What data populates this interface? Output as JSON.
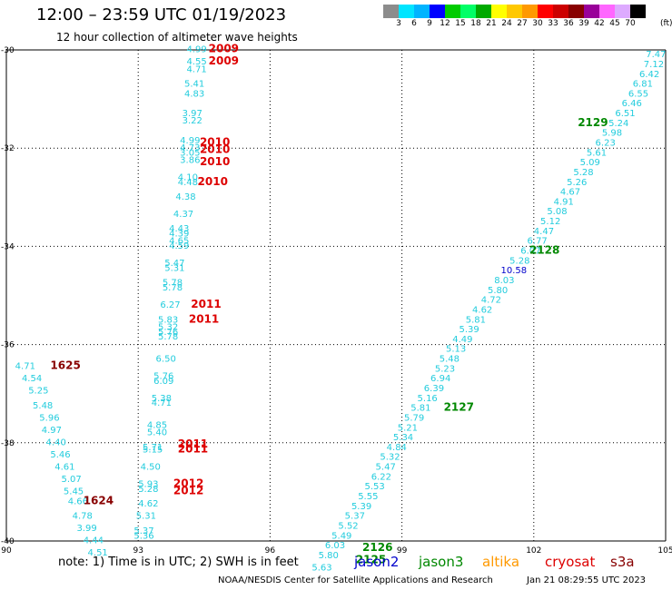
{
  "header": {
    "title": "12:00 – 23:59 UTC 01/19/2023",
    "subtitle": "12 hour collection of altimeter wave heights"
  },
  "scale": {
    "unit": "(ft)",
    "colors": [
      "#8c8c8c",
      "#00e5ff",
      "#00b4ff",
      "#0000ff",
      "#00cc00",
      "#00ff66",
      "#00aa00",
      "#ffff00",
      "#ffc800",
      "#ff9900",
      "#ff0000",
      "#cc0000",
      "#880000",
      "#990099",
      "#ff66ff",
      "#ddaaff",
      "#000000"
    ],
    "labels": [
      "3",
      "6",
      "9",
      "12",
      "15",
      "18",
      "21",
      "24",
      "27",
      "30",
      "33",
      "36",
      "39",
      "42",
      "45",
      "70"
    ]
  },
  "map": {
    "x_ticks": [
      "90",
      "93",
      "96",
      "99",
      "102",
      "105"
    ],
    "y_ticks": [
      "-30",
      "-32",
      "-34",
      "-36",
      "-38",
      "-40"
    ],
    "xlim": [
      90,
      105
    ],
    "ylim": [
      -40,
      -30
    ]
  },
  "wave_labels": [
    {
      "lon": 94.1,
      "lat": -30.05,
      "text": "4.99"
    },
    {
      "lon": 94.1,
      "lat": -30.3,
      "text": "4.55"
    },
    {
      "lon": 94.1,
      "lat": -30.45,
      "text": "4.71"
    },
    {
      "lon": 94.05,
      "lat": -30.75,
      "text": "5.41"
    },
    {
      "lon": 94.05,
      "lat": -30.95,
      "text": "4.83"
    },
    {
      "lon": 94.0,
      "lat": -31.35,
      "text": "3.97"
    },
    {
      "lon": 94.0,
      "lat": -31.5,
      "text": "3.22"
    },
    {
      "lon": 93.95,
      "lat": -31.9,
      "text": "4.99"
    },
    {
      "lon": 93.95,
      "lat": -32.05,
      "text": "4.73"
    },
    {
      "lon": 93.95,
      "lat": -32.15,
      "text": "3.05"
    },
    {
      "lon": 93.95,
      "lat": -32.3,
      "text": "3.86"
    },
    {
      "lon": 93.9,
      "lat": -32.65,
      "text": "4.10"
    },
    {
      "lon": 93.9,
      "lat": -32.75,
      "text": "4.48"
    },
    {
      "lon": 93.85,
      "lat": -33.05,
      "text": "4.38"
    },
    {
      "lon": 93.8,
      "lat": -33.4,
      "text": "4.37"
    },
    {
      "lon": 93.7,
      "lat": -33.7,
      "text": "4.43"
    },
    {
      "lon": 93.7,
      "lat": -33.8,
      "text": "4.39"
    },
    {
      "lon": 93.7,
      "lat": -33.95,
      "text": "4.65"
    },
    {
      "lon": 93.7,
      "lat": -34.05,
      "text": "4.59"
    },
    {
      "lon": 93.6,
      "lat": -34.4,
      "text": "5.47"
    },
    {
      "lon": 93.6,
      "lat": -34.5,
      "text": "5.31"
    },
    {
      "lon": 93.55,
      "lat": -34.8,
      "text": "5.78"
    },
    {
      "lon": 93.55,
      "lat": -34.9,
      "text": "5.78"
    },
    {
      "lon": 93.5,
      "lat": -35.25,
      "text": "6.27"
    },
    {
      "lon": 93.45,
      "lat": -35.55,
      "text": "5.83"
    },
    {
      "lon": 93.45,
      "lat": -35.7,
      "text": "5.32"
    },
    {
      "lon": 93.45,
      "lat": -35.8,
      "text": "5.76"
    },
    {
      "lon": 93.45,
      "lat": -35.9,
      "text": "5.78"
    },
    {
      "lon": 93.4,
      "lat": -36.35,
      "text": "6.50"
    },
    {
      "lon": 93.35,
      "lat": -36.7,
      "text": "5.76"
    },
    {
      "lon": 93.35,
      "lat": -36.8,
      "text": "6.09"
    },
    {
      "lon": 93.3,
      "lat": -37.15,
      "text": "5.38"
    },
    {
      "lon": 93.3,
      "lat": -37.25,
      "text": "4.71"
    },
    {
      "lon": 93.2,
      "lat": -37.7,
      "text": "4.85"
    },
    {
      "lon": 93.2,
      "lat": -37.85,
      "text": "5.40"
    },
    {
      "lon": 93.1,
      "lat": -38.15,
      "text": "5.71"
    },
    {
      "lon": 93.1,
      "lat": -38.2,
      "text": "5.15"
    },
    {
      "lon": 93.05,
      "lat": -38.55,
      "text": "4.50"
    },
    {
      "lon": 93.0,
      "lat": -38.9,
      "text": "5.93"
    },
    {
      "lon": 93.0,
      "lat": -39.0,
      "text": "5.28"
    },
    {
      "lon": 93.0,
      "lat": -39.3,
      "text": "4.62"
    },
    {
      "lon": 92.95,
      "lat": -39.55,
      "text": "5.31"
    },
    {
      "lon": 92.9,
      "lat": -39.85,
      "text": "5.37"
    },
    {
      "lon": 92.9,
      "lat": -39.95,
      "text": "5.36"
    },
    {
      "lon": 90.2,
      "lat": -36.5,
      "text": "4.71"
    },
    {
      "lon": 90.35,
      "lat": -36.75,
      "text": "4.54"
    },
    {
      "lon": 90.5,
      "lat": -37.0,
      "text": "5.25"
    },
    {
      "lon": 90.6,
      "lat": -37.3,
      "text": "5.48"
    },
    {
      "lon": 90.75,
      "lat": -37.55,
      "text": "5.96"
    },
    {
      "lon": 90.8,
      "lat": -37.8,
      "text": "4.97"
    },
    {
      "lon": 90.9,
      "lat": -38.05,
      "text": "4.40"
    },
    {
      "lon": 91.0,
      "lat": -38.3,
      "text": "5.46"
    },
    {
      "lon": 91.1,
      "lat": -38.55,
      "text": "4.61"
    },
    {
      "lon": 91.25,
      "lat": -38.8,
      "text": "5.07"
    },
    {
      "lon": 91.3,
      "lat": -39.05,
      "text": "5.45"
    },
    {
      "lon": 91.4,
      "lat": -39.25,
      "text": "4.66"
    },
    {
      "lon": 91.5,
      "lat": -39.55,
      "text": "4.78"
    },
    {
      "lon": 91.6,
      "lat": -39.8,
      "text": "3.99"
    },
    {
      "lon": 91.75,
      "lat": -40.05,
      "text": "4.44"
    },
    {
      "lon": 91.85,
      "lat": -40.3,
      "text": "4.51"
    },
    {
      "lon": 104.55,
      "lat": -30.15,
      "text": "7.47"
    },
    {
      "lon": 104.5,
      "lat": -30.35,
      "text": "7.12"
    },
    {
      "lon": 104.4,
      "lat": -30.55,
      "text": "6.42"
    },
    {
      "lon": 104.25,
      "lat": -30.75,
      "text": "6.81"
    },
    {
      "lon": 104.15,
      "lat": -30.95,
      "text": "6.55"
    },
    {
      "lon": 104.0,
      "lat": -31.15,
      "text": "6.46"
    },
    {
      "lon": 103.85,
      "lat": -31.35,
      "text": "6.51"
    },
    {
      "lon": 103.7,
      "lat": -31.55,
      "text": "5.24"
    },
    {
      "lon": 103.55,
      "lat": -31.75,
      "text": "5.98"
    },
    {
      "lon": 103.4,
      "lat": -31.95,
      "text": "6.23"
    },
    {
      "lon": 103.2,
      "lat": -32.15,
      "text": "5.61"
    },
    {
      "lon": 103.05,
      "lat": -32.35,
      "text": "5.09"
    },
    {
      "lon": 102.9,
      "lat": -32.55,
      "text": "5.28"
    },
    {
      "lon": 102.75,
      "lat": -32.75,
      "text": "5.26"
    },
    {
      "lon": 102.6,
      "lat": -32.95,
      "text": "4.67"
    },
    {
      "lon": 102.45,
      "lat": -33.15,
      "text": "4.91"
    },
    {
      "lon": 102.3,
      "lat": -33.35,
      "text": "5.08"
    },
    {
      "lon": 102.15,
      "lat": -33.55,
      "text": "5.12"
    },
    {
      "lon": 102.0,
      "lat": -33.75,
      "text": "4.47"
    },
    {
      "lon": 101.85,
      "lat": -33.95,
      "text": "6.77"
    },
    {
      "lon": 101.7,
      "lat": -34.15,
      "text": "6.07"
    },
    {
      "lon": 101.45,
      "lat": -34.35,
      "text": "5.28"
    },
    {
      "lon": 101.25,
      "lat": -34.55,
      "text": "10.58",
      "color": "#0000cc"
    },
    {
      "lon": 101.1,
      "lat": -34.75,
      "text": "8.03"
    },
    {
      "lon": 100.95,
      "lat": -34.95,
      "text": "5.80"
    },
    {
      "lon": 100.8,
      "lat": -35.15,
      "text": "4.72"
    },
    {
      "lon": 100.6,
      "lat": -35.35,
      "text": "4.62"
    },
    {
      "lon": 100.45,
      "lat": -35.55,
      "text": "5.81"
    },
    {
      "lon": 100.3,
      "lat": -35.75,
      "text": "5.39"
    },
    {
      "lon": 100.15,
      "lat": -35.95,
      "text": "4.49"
    },
    {
      "lon": 100.0,
      "lat": -36.15,
      "text": "5.13"
    },
    {
      "lon": 99.85,
      "lat": -36.35,
      "text": "5.48"
    },
    {
      "lon": 99.75,
      "lat": -36.55,
      "text": "5.23"
    },
    {
      "lon": 99.65,
      "lat": -36.75,
      "text": "6.94"
    },
    {
      "lon": 99.5,
      "lat": -36.95,
      "text": "6.39"
    },
    {
      "lon": 99.35,
      "lat": -37.15,
      "text": "5.16"
    },
    {
      "lon": 99.2,
      "lat": -37.35,
      "text": "5.81"
    },
    {
      "lon": 99.05,
      "lat": -37.55,
      "text": "5.79"
    },
    {
      "lon": 98.9,
      "lat": -37.75,
      "text": "5.21"
    },
    {
      "lon": 98.8,
      "lat": -37.95,
      "text": "5.34"
    },
    {
      "lon": 98.65,
      "lat": -38.15,
      "text": "4.84"
    },
    {
      "lon": 98.5,
      "lat": -38.35,
      "text": "5.32"
    },
    {
      "lon": 98.4,
      "lat": -38.55,
      "text": "5.47"
    },
    {
      "lon": 98.3,
      "lat": -38.75,
      "text": "6.22"
    },
    {
      "lon": 98.15,
      "lat": -38.95,
      "text": "5.53"
    },
    {
      "lon": 98.0,
      "lat": -39.15,
      "text": "5.55"
    },
    {
      "lon": 97.85,
      "lat": -39.35,
      "text": "5.39"
    },
    {
      "lon": 97.7,
      "lat": -39.55,
      "text": "5.37"
    },
    {
      "lon": 97.55,
      "lat": -39.75,
      "text": "5.52"
    },
    {
      "lon": 97.4,
      "lat": -39.95,
      "text": "5.49"
    },
    {
      "lon": 97.25,
      "lat": -40.15,
      "text": "6.03"
    },
    {
      "lon": 97.1,
      "lat": -40.35,
      "text": "5.80"
    },
    {
      "lon": 96.95,
      "lat": -40.6,
      "text": "5.63"
    }
  ],
  "pass_labels": [
    {
      "lon": 94.6,
      "lat": -30.05,
      "text": "2009",
      "color": "#dd0000"
    },
    {
      "lon": 94.6,
      "lat": -30.3,
      "text": "2009",
      "color": "#dd0000"
    },
    {
      "lon": 94.4,
      "lat": -31.95,
      "text": "2010",
      "color": "#dd0000"
    },
    {
      "lon": 94.4,
      "lat": -32.1,
      "text": "2010",
      "color": "#dd0000"
    },
    {
      "lon": 94.4,
      "lat": -32.35,
      "text": "2010",
      "color": "#dd0000"
    },
    {
      "lon": 94.35,
      "lat": -32.75,
      "text": "2010",
      "color": "#dd0000"
    },
    {
      "lon": 94.2,
      "lat": -35.25,
      "text": "2011",
      "color": "#dd0000"
    },
    {
      "lon": 94.15,
      "lat": -35.55,
      "text": "2011",
      "color": "#dd0000"
    },
    {
      "lon": 93.9,
      "lat": -38.1,
      "text": "2011",
      "color": "#dd0000"
    },
    {
      "lon": 93.9,
      "lat": -38.2,
      "text": "2011",
      "color": "#dd0000"
    },
    {
      "lon": 93.8,
      "lat": -38.9,
      "text": "2012",
      "color": "#dd0000"
    },
    {
      "lon": 93.8,
      "lat": -39.05,
      "text": "2012",
      "color": "#dd0000"
    },
    {
      "lon": 91.0,
      "lat": -36.5,
      "text": "1625",
      "color": "#880000"
    },
    {
      "lon": 91.75,
      "lat": -39.25,
      "text": "1624",
      "color": "#880000"
    },
    {
      "lon": 103.0,
      "lat": -31.55,
      "text": "2129",
      "color": "#008800"
    },
    {
      "lon": 101.9,
      "lat": -34.15,
      "text": "2128",
      "color": "#008800"
    },
    {
      "lon": 99.95,
      "lat": -37.35,
      "text": "2127",
      "color": "#008800"
    },
    {
      "lon": 98.1,
      "lat": -40.2,
      "text": "2126",
      "color": "#008800"
    },
    {
      "lon": 97.95,
      "lat": -40.45,
      "text": "2125",
      "color": "#008800"
    }
  ],
  "footer": {
    "note": "note: 1) Time is in UTC; 2) SWH is in feet",
    "missions": [
      {
        "name": "jason2",
        "color": "#0000cc"
      },
      {
        "name": "jason3",
        "color": "#008800"
      },
      {
        "name": "altika",
        "color": "#ff9900"
      },
      {
        "name": "cryosat",
        "color": "#dd0000"
      },
      {
        "name": "s3a",
        "color": "#880000"
      }
    ],
    "credit": "NOAA/NESDIS Center for Satellite Applications and Research",
    "timestamp": "Jan 21 08:29:55 UTC 2023"
  }
}
